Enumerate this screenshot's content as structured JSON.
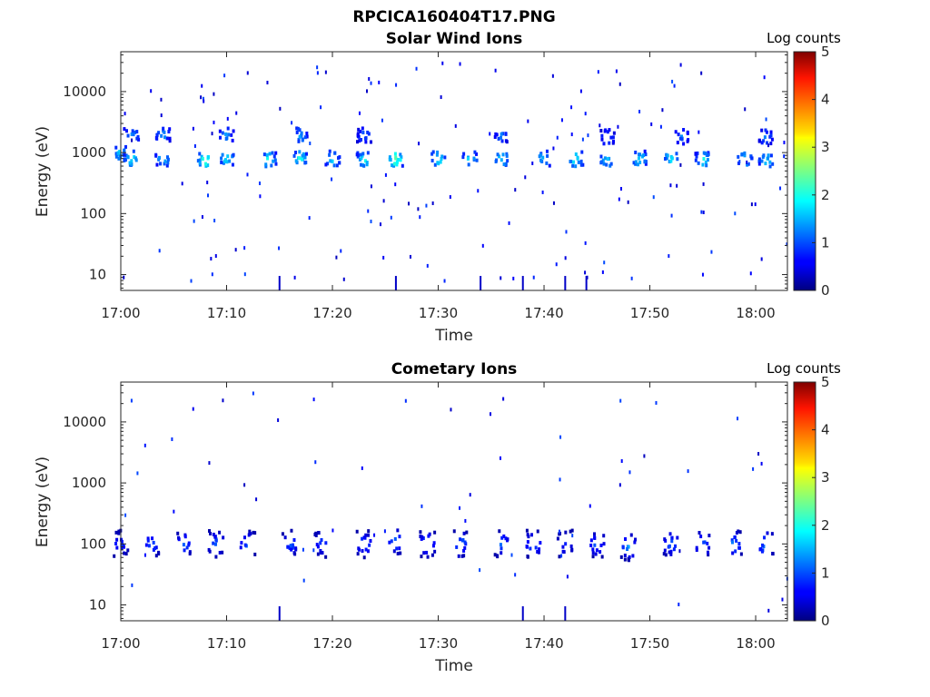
{
  "figure_title": "RPCICA160404T17.PNG",
  "chart_data": [
    {
      "type": "heatmap",
      "title": "Solar Wind Ions",
      "xlabel": "Time",
      "ylabel": "Energy (eV)",
      "x_range": [
        "17:00",
        "18:03"
      ],
      "x_ticks": [
        "17:00",
        "17:10",
        "17:20",
        "17:30",
        "17:40",
        "17:50",
        "18:00"
      ],
      "y_scale": "log",
      "y_range": [
        5.5,
        45000
      ],
      "y_ticks": [
        "10",
        "100",
        "1000",
        "10000"
      ],
      "colorbar": {
        "label": "Log counts",
        "range": [
          0,
          5
        ],
        "ticks": [
          "0",
          "1",
          "2",
          "3",
          "4",
          "5"
        ],
        "colormap": "jet"
      },
      "clusters": [
        {
          "t": "17:00",
          "e": 1000,
          "max": 2.0
        },
        {
          "t": "17:01",
          "e": 800,
          "max": 2.4
        },
        {
          "t": "17:04",
          "e": 800,
          "max": 2.0
        },
        {
          "t": "17:08",
          "e": 780,
          "max": 3.0
        },
        {
          "t": "17:10",
          "e": 800,
          "max": 2.3
        },
        {
          "t": "17:14",
          "e": 760,
          "max": 2.3
        },
        {
          "t": "17:17",
          "e": 800,
          "max": 2.3
        },
        {
          "t": "17:20",
          "e": 800,
          "max": 2.2
        },
        {
          "t": "17:23",
          "e": 760,
          "max": 2.5
        },
        {
          "t": "17:26",
          "e": 780,
          "max": 3.0
        },
        {
          "t": "17:30",
          "e": 780,
          "max": 2.3
        },
        {
          "t": "17:33",
          "e": 780,
          "max": 2.3
        },
        {
          "t": "17:36",
          "e": 780,
          "max": 2.2
        },
        {
          "t": "17:40",
          "e": 800,
          "max": 2.0
        },
        {
          "t": "17:43",
          "e": 780,
          "max": 2.3
        },
        {
          "t": "17:46",
          "e": 760,
          "max": 2.1
        },
        {
          "t": "17:49",
          "e": 800,
          "max": 2.3
        },
        {
          "t": "17:52",
          "e": 800,
          "max": 2.4
        },
        {
          "t": "17:55",
          "e": 760,
          "max": 2.4
        },
        {
          "t": "17:59",
          "e": 760,
          "max": 2.3
        },
        {
          "t": "18:01",
          "e": 760,
          "max": 2.2
        },
        {
          "t": "17:01",
          "e": 1900,
          "max": 1.8
        },
        {
          "t": "17:04",
          "e": 2000,
          "max": 1.7
        },
        {
          "t": "17:10",
          "e": 1900,
          "max": 1.6
        },
        {
          "t": "17:17",
          "e": 1900,
          "max": 1.7
        },
        {
          "t": "17:23",
          "e": 1900,
          "max": 1.4
        },
        {
          "t": "17:36",
          "e": 1900,
          "max": 1.4
        },
        {
          "t": "17:46",
          "e": 1800,
          "max": 1.4
        },
        {
          "t": "17:53",
          "e": 1800,
          "max": 1.5
        },
        {
          "t": "18:01",
          "e": 1800,
          "max": 1.5
        }
      ]
    },
    {
      "type": "heatmap",
      "title": "Cometary Ions",
      "xlabel": "Time",
      "ylabel": "Energy (eV)",
      "x_range": [
        "17:00",
        "18:03"
      ],
      "x_ticks": [
        "17:00",
        "17:10",
        "17:20",
        "17:30",
        "17:40",
        "17:50",
        "18:00"
      ],
      "y_scale": "log",
      "y_range": [
        5.5,
        45000
      ],
      "y_ticks": [
        "10",
        "100",
        "1000",
        "10000"
      ],
      "colorbar": {
        "label": "Log counts",
        "range": [
          0,
          5
        ],
        "ticks": [
          "0",
          "1",
          "2",
          "3",
          "4",
          "5"
        ],
        "colormap": "jet"
      },
      "clusters": [
        {
          "t": "17:00",
          "e": 100,
          "max": 1.2
        },
        {
          "t": "17:03",
          "e": 100,
          "max": 1.2
        },
        {
          "t": "17:06",
          "e": 100,
          "max": 1.3
        },
        {
          "t": "17:09",
          "e": 100,
          "max": 1.3
        },
        {
          "t": "17:12",
          "e": 100,
          "max": 1.3
        },
        {
          "t": "17:16",
          "e": 100,
          "max": 1.3
        },
        {
          "t": "17:19",
          "e": 100,
          "max": 1.2
        },
        {
          "t": "17:23",
          "e": 100,
          "max": 1.3
        },
        {
          "t": "17:26",
          "e": 110,
          "max": 1.4
        },
        {
          "t": "17:29",
          "e": 100,
          "max": 1.6
        },
        {
          "t": "17:32",
          "e": 100,
          "max": 1.6
        },
        {
          "t": "17:36",
          "e": 100,
          "max": 1.4
        },
        {
          "t": "17:39",
          "e": 100,
          "max": 1.4
        },
        {
          "t": "17:42",
          "e": 100,
          "max": 1.0
        },
        {
          "t": "17:45",
          "e": 100,
          "max": 1.3
        },
        {
          "t": "17:48",
          "e": 90,
          "max": 1.5
        },
        {
          "t": "17:52",
          "e": 100,
          "max": 1.3
        },
        {
          "t": "17:55",
          "e": 100,
          "max": 1.4
        },
        {
          "t": "17:58",
          "e": 100,
          "max": 1.5
        },
        {
          "t": "18:01",
          "e": 100,
          "max": 1.6
        }
      ]
    }
  ]
}
